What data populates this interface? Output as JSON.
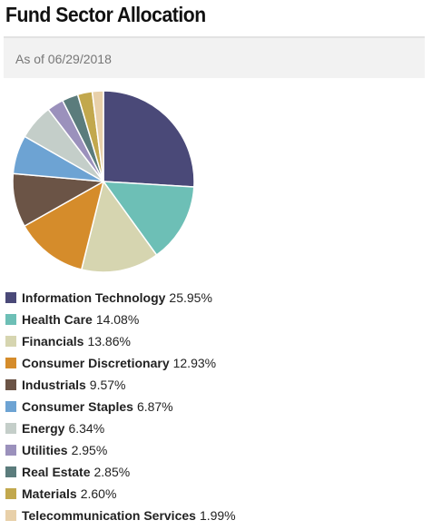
{
  "header": {
    "title": "Fund Sector Allocation",
    "as_of": "As of 06/29/2018"
  },
  "chart_data": {
    "type": "pie",
    "title": "Fund Sector Allocation",
    "legend_placement": "bottom",
    "slices": [
      {
        "label": "Information Technology",
        "value": 25.95,
        "display": "25.95%",
        "color": "#4a4978"
      },
      {
        "label": "Health Care",
        "value": 14.08,
        "display": "14.08%",
        "color": "#6dbfb6"
      },
      {
        "label": "Financials",
        "value": 13.86,
        "display": "13.86%",
        "color": "#d6d5b0"
      },
      {
        "label": "Consumer Discretionary",
        "value": 12.93,
        "display": "12.93%",
        "color": "#d58c2b"
      },
      {
        "label": "Industrials",
        "value": 9.57,
        "display": "9.57%",
        "color": "#6b5446"
      },
      {
        "label": "Consumer Staples",
        "value": 6.87,
        "display": "6.87%",
        "color": "#6da3d3"
      },
      {
        "label": "Energy",
        "value": 6.34,
        "display": "6.34%",
        "color": "#c4cec9"
      },
      {
        "label": "Utilities",
        "value": 2.95,
        "display": "2.95%",
        "color": "#9b91bc"
      },
      {
        "label": "Real Estate",
        "value": 2.85,
        "display": "2.85%",
        "color": "#5b7c7c"
      },
      {
        "label": "Materials",
        "value": 2.6,
        "display": "2.60%",
        "color": "#c2a84d"
      },
      {
        "label": "Telecommunication Services",
        "value": 1.99,
        "display": "1.99%",
        "color": "#e8d0a9"
      }
    ]
  }
}
